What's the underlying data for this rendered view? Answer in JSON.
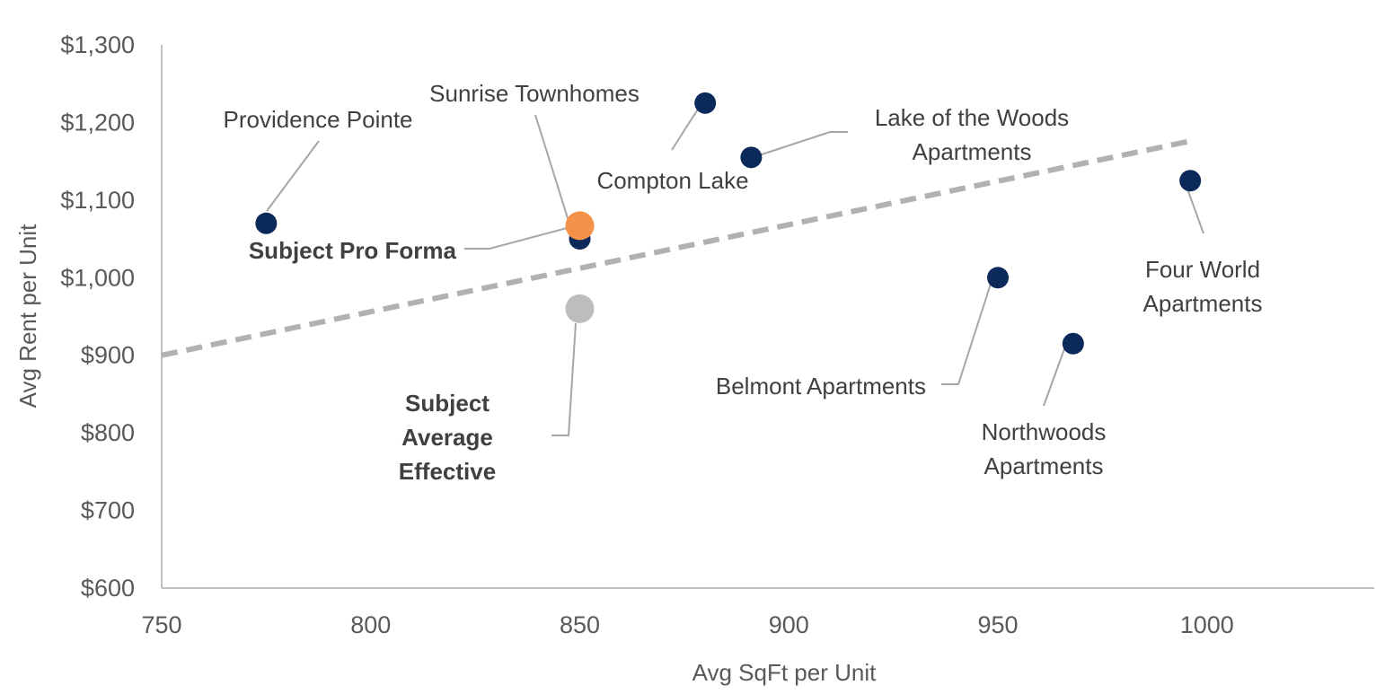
{
  "chart_data": {
    "type": "scatter",
    "xlabel": "Avg SqFt per Unit",
    "ylabel": "Avg Rent per Unit",
    "xlim": [
      750,
      1040
    ],
    "ylim": [
      600,
      1300
    ],
    "x_ticks": [
      750,
      800,
      850,
      900,
      950,
      1000
    ],
    "x_tick_labels": [
      "750",
      "800",
      "850",
      "900",
      "950",
      "1000"
    ],
    "y_ticks": [
      600,
      700,
      800,
      900,
      1000,
      1100,
      1200,
      1300
    ],
    "y_tick_labels": [
      "$600",
      "$700",
      "$800",
      "$900",
      "$1,000",
      "$1,100",
      "$1,200",
      "$1,300"
    ],
    "grid": false,
    "legend": "none",
    "colors": {
      "comparable": "#0b2a5a",
      "subject_pro_forma": "#f4924a",
      "subject_average_effective": "#bfbcbc",
      "trendline": "#b3b0b0",
      "axis": "#bfbfbf",
      "leader": "#a6a6a6"
    },
    "points": [
      {
        "id": "providence-pointe",
        "label_lines": [
          "Providence Pointe"
        ],
        "x": 775,
        "y": 1070,
        "kind": "comparable",
        "bold": false
      },
      {
        "id": "sunrise-townhomes",
        "label_lines": [
          "Sunrise Townhomes"
        ],
        "x": 850,
        "y": 1050,
        "kind": "comparable",
        "bold": false
      },
      {
        "id": "compton-lake",
        "label_lines": [
          "Compton Lake"
        ],
        "x": 880,
        "y": 1225,
        "kind": "comparable",
        "bold": false
      },
      {
        "id": "lake-of-the-woods",
        "label_lines": [
          "Lake of the Woods",
          "Apartments"
        ],
        "x": 891,
        "y": 1155,
        "kind": "comparable",
        "bold": false
      },
      {
        "id": "four-world",
        "label_lines": [
          "Four World",
          "Apartments"
        ],
        "x": 996,
        "y": 1125,
        "kind": "comparable",
        "bold": false
      },
      {
        "id": "belmont",
        "label_lines": [
          "Belmont Apartments"
        ],
        "x": 950,
        "y": 1000,
        "kind": "comparable",
        "bold": false
      },
      {
        "id": "northwoods",
        "label_lines": [
          "Northwoods",
          "Apartments"
        ],
        "x": 968,
        "y": 915,
        "kind": "comparable",
        "bold": false
      },
      {
        "id": "subject-pro-forma",
        "label_lines": [
          "Subject Pro Forma"
        ],
        "x": 850,
        "y": 1067,
        "kind": "subject_pro_forma",
        "bold": true
      },
      {
        "id": "subject-average-effective",
        "label_lines": [
          "Subject",
          "Average",
          "Effective"
        ],
        "x": 850,
        "y": 960,
        "kind": "subject_average_effective",
        "bold": true
      }
    ],
    "trendline": {
      "style": "dashed",
      "x": [
        750,
        996
      ],
      "y": [
        900,
        1176
      ]
    }
  }
}
